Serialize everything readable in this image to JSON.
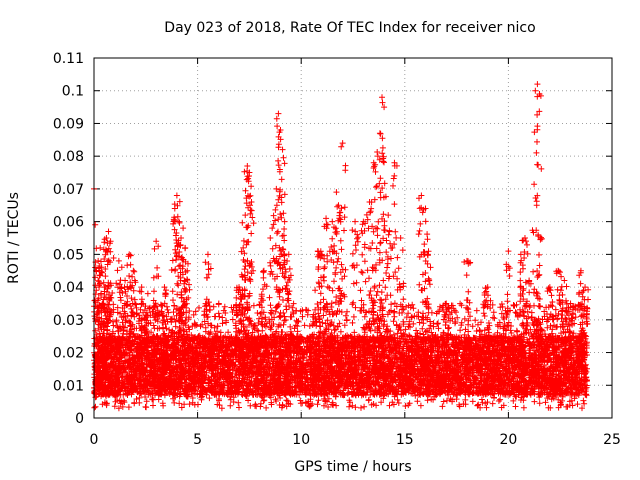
{
  "chart_data": {
    "type": "scatter",
    "title": "Day 023 of 2018, Rate Of TEC Index for receiver nico",
    "xlabel": "GPS time / hours",
    "ylabel": "ROTI / TECUs",
    "xlim": [
      0,
      25
    ],
    "ylim": [
      0,
      0.11
    ],
    "x_ticks": [
      "0",
      "5",
      "10",
      "15",
      "20",
      "25"
    ],
    "y_ticks": [
      "0",
      "0.01",
      "0.02",
      "0.03",
      "0.04",
      "0.05",
      "0.06",
      "0.07",
      "0.08",
      "0.09",
      "0.1",
      "0.11"
    ],
    "grid": true,
    "marker": "+",
    "color": "#ff0000",
    "series": [
      {
        "values_note": "",
        "points": [
          [
            0.0,
            0.07
          ],
          [
            0.1,
            0.045
          ],
          [
            0.2,
            0.048
          ],
          [
            0.3,
            0.052
          ],
          [
            0.5,
            0.04
          ],
          [
            0.6,
            0.055
          ],
          [
            0.7,
            0.057
          ],
          [
            0.8,
            0.054
          ],
          [
            1.2,
            0.048
          ],
          [
            1.5,
            0.042
          ],
          [
            1.7,
            0.05
          ],
          [
            1.9,
            0.045
          ],
          [
            2.3,
            0.04
          ],
          [
            2.6,
            0.038
          ],
          [
            3.0,
            0.054
          ],
          [
            3.4,
            0.04
          ],
          [
            3.9,
            0.064
          ],
          [
            4.0,
            0.068
          ],
          [
            4.1,
            0.06
          ],
          [
            4.2,
            0.055
          ],
          [
            4.3,
            0.058
          ],
          [
            4.4,
            0.052
          ],
          [
            4.5,
            0.045
          ],
          [
            5.5,
            0.05
          ],
          [
            7.0,
            0.04
          ],
          [
            7.2,
            0.052
          ],
          [
            7.3,
            0.062
          ],
          [
            7.4,
            0.077
          ],
          [
            7.5,
            0.075
          ],
          [
            7.6,
            0.066
          ],
          [
            8.2,
            0.045
          ],
          [
            8.6,
            0.058
          ],
          [
            8.8,
            0.07
          ],
          [
            8.9,
            0.093
          ],
          [
            9.0,
            0.088
          ],
          [
            9.1,
            0.082
          ],
          [
            9.2,
            0.06
          ],
          [
            9.4,
            0.05
          ],
          [
            10.8,
            0.051
          ],
          [
            11.0,
            0.05
          ],
          [
            11.2,
            0.061
          ],
          [
            11.5,
            0.06
          ],
          [
            11.7,
            0.069
          ],
          [
            11.8,
            0.065
          ],
          [
            12.0,
            0.084
          ],
          [
            12.6,
            0.06
          ],
          [
            13.0,
            0.06
          ],
          [
            13.3,
            0.066
          ],
          [
            13.5,
            0.078
          ],
          [
            13.7,
            0.08
          ],
          [
            13.8,
            0.087
          ],
          [
            13.9,
            0.098
          ],
          [
            14.0,
            0.095
          ],
          [
            14.2,
            0.062
          ],
          [
            14.5,
            0.078
          ],
          [
            14.8,
            0.055
          ],
          [
            15.8,
            0.068
          ],
          [
            16.0,
            0.064
          ],
          [
            16.1,
            0.05
          ],
          [
            17.0,
            0.035
          ],
          [
            18.0,
            0.048
          ],
          [
            19.0,
            0.04
          ],
          [
            20.0,
            0.051
          ],
          [
            20.6,
            0.05
          ],
          [
            20.8,
            0.055
          ],
          [
            21.0,
            0.042
          ],
          [
            21.3,
            0.1
          ],
          [
            21.4,
            0.102
          ],
          [
            21.5,
            0.099
          ],
          [
            22.0,
            0.04
          ],
          [
            22.4,
            0.045
          ],
          [
            22.7,
            0.042
          ],
          [
            23.0,
            0.035
          ],
          [
            23.5,
            0.045
          ],
          [
            23.7,
            0.04
          ]
        ]
      }
    ],
    "baseline_band": {
      "x_range": [
        0,
        23.8
      ],
      "y_core": [
        0.007,
        0.025
      ],
      "y_spread": [
        0.003,
        0.035
      ]
    }
  }
}
